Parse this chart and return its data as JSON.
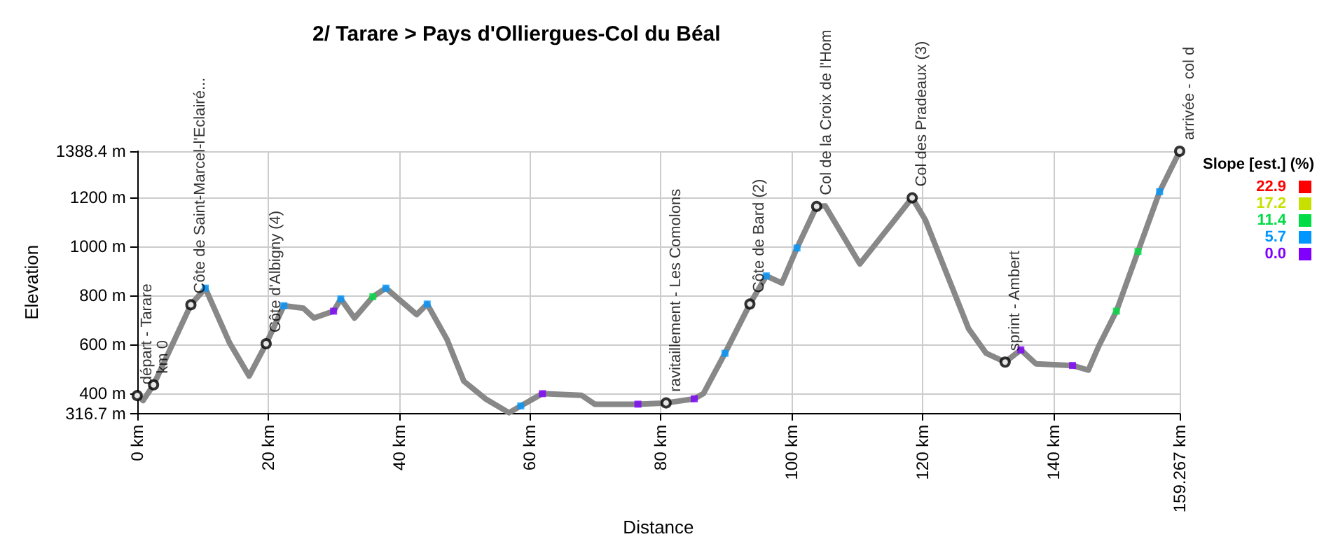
{
  "chart_data": {
    "type": "line",
    "title": "2/ Tarare > Pays d'Olliergues-Col du Béal",
    "xlabel": "Distance",
    "ylabel": "Elevation",
    "clabel": "Slope [est.] (%)",
    "clim": [
      0,
      22.9
    ],
    "cticks": [
      {
        "value": 0,
        "label": "0.0"
      },
      5.7,
      11.4,
      17.2,
      22.9
    ],
    "xlim": [
      0,
      159.267
    ],
    "xticks": [
      {
        "value": 0,
        "label": "0 km"
      },
      {
        "value": 20,
        "label": "20 km"
      },
      {
        "value": 40,
        "label": "40 km"
      },
      {
        "value": 60,
        "label": "60 km"
      },
      {
        "value": 80,
        "label": "80 km"
      },
      {
        "value": 100,
        "label": "100 km"
      },
      {
        "value": 120,
        "label": "120 km"
      },
      {
        "value": 140,
        "label": "140 km"
      },
      {
        "value": 159.267,
        "label": "159.267 km"
      }
    ],
    "ylim": [
      316.7,
      1388.4
    ],
    "yticks": [
      {
        "value": 316.7,
        "label": "316.7 m"
      },
      {
        "value": 400,
        "label": "400 m"
      },
      {
        "value": 600,
        "label": "600 m"
      },
      {
        "value": 800,
        "label": "800 m"
      },
      {
        "value": 1000,
        "label": "1000 m"
      },
      {
        "value": 1200,
        "label": "1200 m"
      },
      {
        "value": 1388.4,
        "label": "1388.4 m"
      }
    ],
    "grid": true,
    "series": [
      {
        "color": "#888888",
        "x": [
          0,
          0.9,
          2.5,
          8.2,
          10.4,
          14.1,
          17.1,
          19.7,
          22.4,
          25.4,
          27.0,
          30.0,
          31.1,
          33.2,
          36.0,
          38.0,
          42.7,
          44.3,
          47.3,
          49.9,
          53.2,
          56.8,
          58.6,
          61.9,
          67.9,
          69.9,
          76.5,
          80.8,
          85.1,
          86.5,
          89.8,
          93.6,
          96.1,
          98.5,
          100.8,
          103.8,
          105.1,
          110.4,
          118.4,
          120.4,
          127.0,
          129.7,
          132.6,
          135.0,
          137.3,
          142.9,
          145.3,
          146.9,
          149.6,
          152.9,
          156.2,
          159.267
        ],
        "values": [
          390,
          370,
          434,
          761,
          829,
          606,
          470,
          602,
          757,
          747,
          707,
          735,
          785,
          707,
          794,
          829,
          721,
          764,
          621,
          449,
          377,
          320,
          348,
          398,
          391,
          355,
          355,
          360,
          377,
          398,
          563,
          764,
          879,
          850,
          993,
          1163,
          1165,
          928,
          1198,
          1108,
          664,
          563,
          527,
          577,
          520,
          513,
          494,
          592,
          735,
          979,
          1223,
          1388.4
        ]
      },
      {
        "type": "scatter",
        "marker": "square",
        "x": [
          10.4,
          22.4,
          30.0,
          31.1,
          36.0,
          38.0,
          44.3,
          58.6,
          61.9,
          76.5,
          85.1,
          89.8,
          96.1,
          100.8,
          135.0,
          142.9,
          149.6,
          152.9,
          156.2
        ],
        "values": [
          829,
          757,
          735,
          785,
          794,
          829,
          764,
          348,
          398,
          355,
          377,
          563,
          879,
          993,
          577,
          513,
          735,
          979,
          1223
        ],
        "colors": [
          "#0096ff",
          "#0096ff",
          "#7f00ff",
          "#0096ff",
          "#00dd44",
          "#0096ff",
          "#0096ff",
          "#0096ff",
          "#7f00ff",
          "#7f00ff",
          "#7f00ff",
          "#0096ff",
          "#0096ff",
          "#0096ff",
          "#7f00ff",
          "#7f00ff",
          "#00dd44",
          "#00dd44",
          "#0096ff"
        ]
      }
    ],
    "annotations": [
      {
        "text": "départ - Tarare",
        "x": 0,
        "y": 390
      },
      {
        "text": "km 0",
        "x": 2.5,
        "y": 434
      },
      {
        "text": "Côte de Saint-Marcel-l'Eclairé...",
        "x": 8.2,
        "y": 761
      },
      {
        "text": "Côte d'Albigny (4)",
        "x": 19.7,
        "y": 602
      },
      {
        "text": "ravitaillement - Les Comolons",
        "x": 80.8,
        "y": 360
      },
      {
        "text": "Côte de Bard (2)",
        "x": 93.6,
        "y": 764
      },
      {
        "text": "Col de la Croix de l'Hom",
        "x": 103.8,
        "y": 1163
      },
      {
        "text": "Col des Pradeaux (3)",
        "x": 118.4,
        "y": 1198
      },
      {
        "text": "sprint - Ambert",
        "x": 132.6,
        "y": 527
      },
      {
        "text": "arrivée - col d",
        "x": 159.267,
        "y": 1388.4
      }
    ]
  }
}
